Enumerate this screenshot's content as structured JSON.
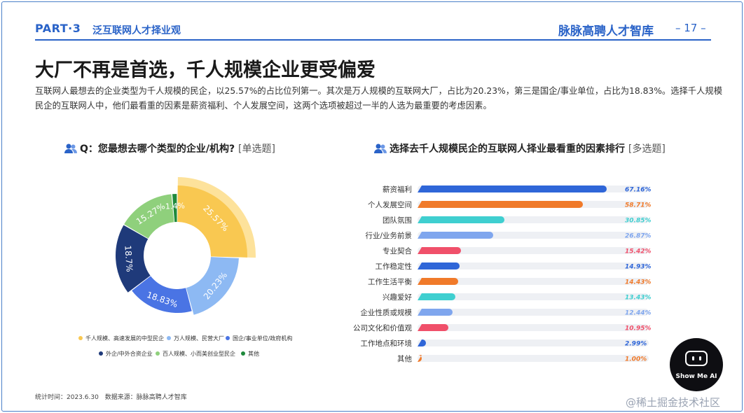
{
  "header": {
    "part": "PART·3",
    "section": "泛互联网人才择业观",
    "brand": "脉脉高聘人才智库",
    "page": "– 17 –"
  },
  "title": "大厂不再是首选，千人规模企业更受偏爱",
  "description": "互联网人最想去的企业类型为千人规模的民企，以25.57%的占比位列第一。其次是万人规模的互联网大厂，占比为20.23%，第三是国企/事业单位，占比为18.83%。选择千人规模民企的互联网人中，他们最看重的因素是薪资福利、个人发展空间，这两个选项被超过一半的人选为最重要的考虑因素。",
  "left_question": {
    "title": "Q：您最想去哪个类型的企业/机构?",
    "tag": "[单选题]"
  },
  "right_question": {
    "title": "选择去千人规模民企的互联网人择业最看重的因素排行",
    "tag": "[多选题]"
  },
  "footer": "统计时间：2023.6.30　数据来源：脉脉高聘人才智库",
  "watermark": "@稀土掘金技术社区",
  "badge": "Show Me AI",
  "colors": {
    "accent": "#2a63c8"
  },
  "chart_data": [
    {
      "type": "pie",
      "variant": "donut",
      "slices": [
        {
          "name": "千人规模、高速发展的中型民企",
          "value": 25.57,
          "label": "25.57%",
          "color": "#f9c851"
        },
        {
          "name": "万人规模、民营大厂",
          "value": 20.23,
          "label": "20.23%",
          "color": "#8db9f3"
        },
        {
          "name": "国企/事业单位/政府机构",
          "value": 18.83,
          "label": "18.83%",
          "color": "#4a74e4"
        },
        {
          "name": "外企/中外合资企业",
          "value": 18.7,
          "label": "18.7%",
          "color": "#1f3a7a"
        },
        {
          "name": "百人规模、小而美创业型民企",
          "value": 15.27,
          "label": "15.27%",
          "color": "#8fd07c"
        },
        {
          "name": "其他",
          "value": 1.4,
          "label": "1.4%",
          "color": "#1f8a3c"
        }
      ],
      "legend_position": "bottom"
    },
    {
      "type": "bar",
      "orientation": "horizontal",
      "categories": [
        "薪资福利",
        "个人发展空间",
        "团队氛围",
        "行业/业务前景",
        "专业契合",
        "工作稳定性",
        "工作生活平衡",
        "兴趣爱好",
        "企业性质或规模",
        "公司文化和价值观",
        "工作地点和环境",
        "其他"
      ],
      "values": [
        67.16,
        58.71,
        30.85,
        26.87,
        15.42,
        14.93,
        14.43,
        13.43,
        12.44,
        10.95,
        2.99,
        1.0
      ],
      "labels": [
        "67.16%",
        "58.71%",
        "30.85%",
        "26.87%",
        "15.42%",
        "14.93%",
        "14.43%",
        "13.43%",
        "12.44%",
        "10.95%",
        "2.99%",
        "1.00%"
      ],
      "colors": [
        "#2f66d8",
        "#f07a2a",
        "#3fcfd0",
        "#7fa6ee",
        "#f0506a",
        "#2f66d8",
        "#f07a2a",
        "#3fcfd0",
        "#7fa6ee",
        "#f0506a",
        "#2f66d8",
        "#f07a2a"
      ],
      "xlim": [
        0,
        100
      ]
    }
  ]
}
